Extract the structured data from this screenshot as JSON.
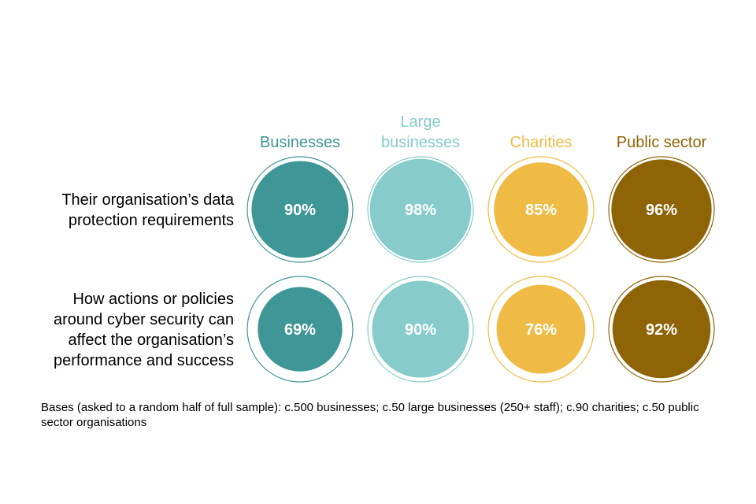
{
  "chart_data": {
    "type": "bubble-grid",
    "columns": [
      {
        "name": "Businesses",
        "label_lines": [
          "Businesses"
        ],
        "color": "#3f9696"
      },
      {
        "name": "Large businesses",
        "label_lines": [
          "Large",
          "businesses"
        ],
        "color": "#87cbcb"
      },
      {
        "name": "Charities",
        "label_lines": [
          "Charities"
        ],
        "color": "#f0bb45"
      },
      {
        "name": "Public sector",
        "label_lines": [
          "Public sector"
        ],
        "color": "#8f6407"
      }
    ],
    "rows": [
      {
        "label_lines": [
          "Their organisation’s data",
          "protection requirements"
        ],
        "values": [
          90,
          98,
          85,
          96
        ]
      },
      {
        "label_lines": [
          "How actions or policies",
          "around cyber security can",
          "affect the organisation’s",
          "performance and success"
        ],
        "values": [
          69,
          90,
          76,
          92
        ]
      }
    ],
    "value_suffix": "%"
  },
  "bases_note": "Bases (asked to a random half of full sample): c.500 businesses; c.50 large businesses (250+ staff); c.90 charities; c.50 public sector organisations"
}
